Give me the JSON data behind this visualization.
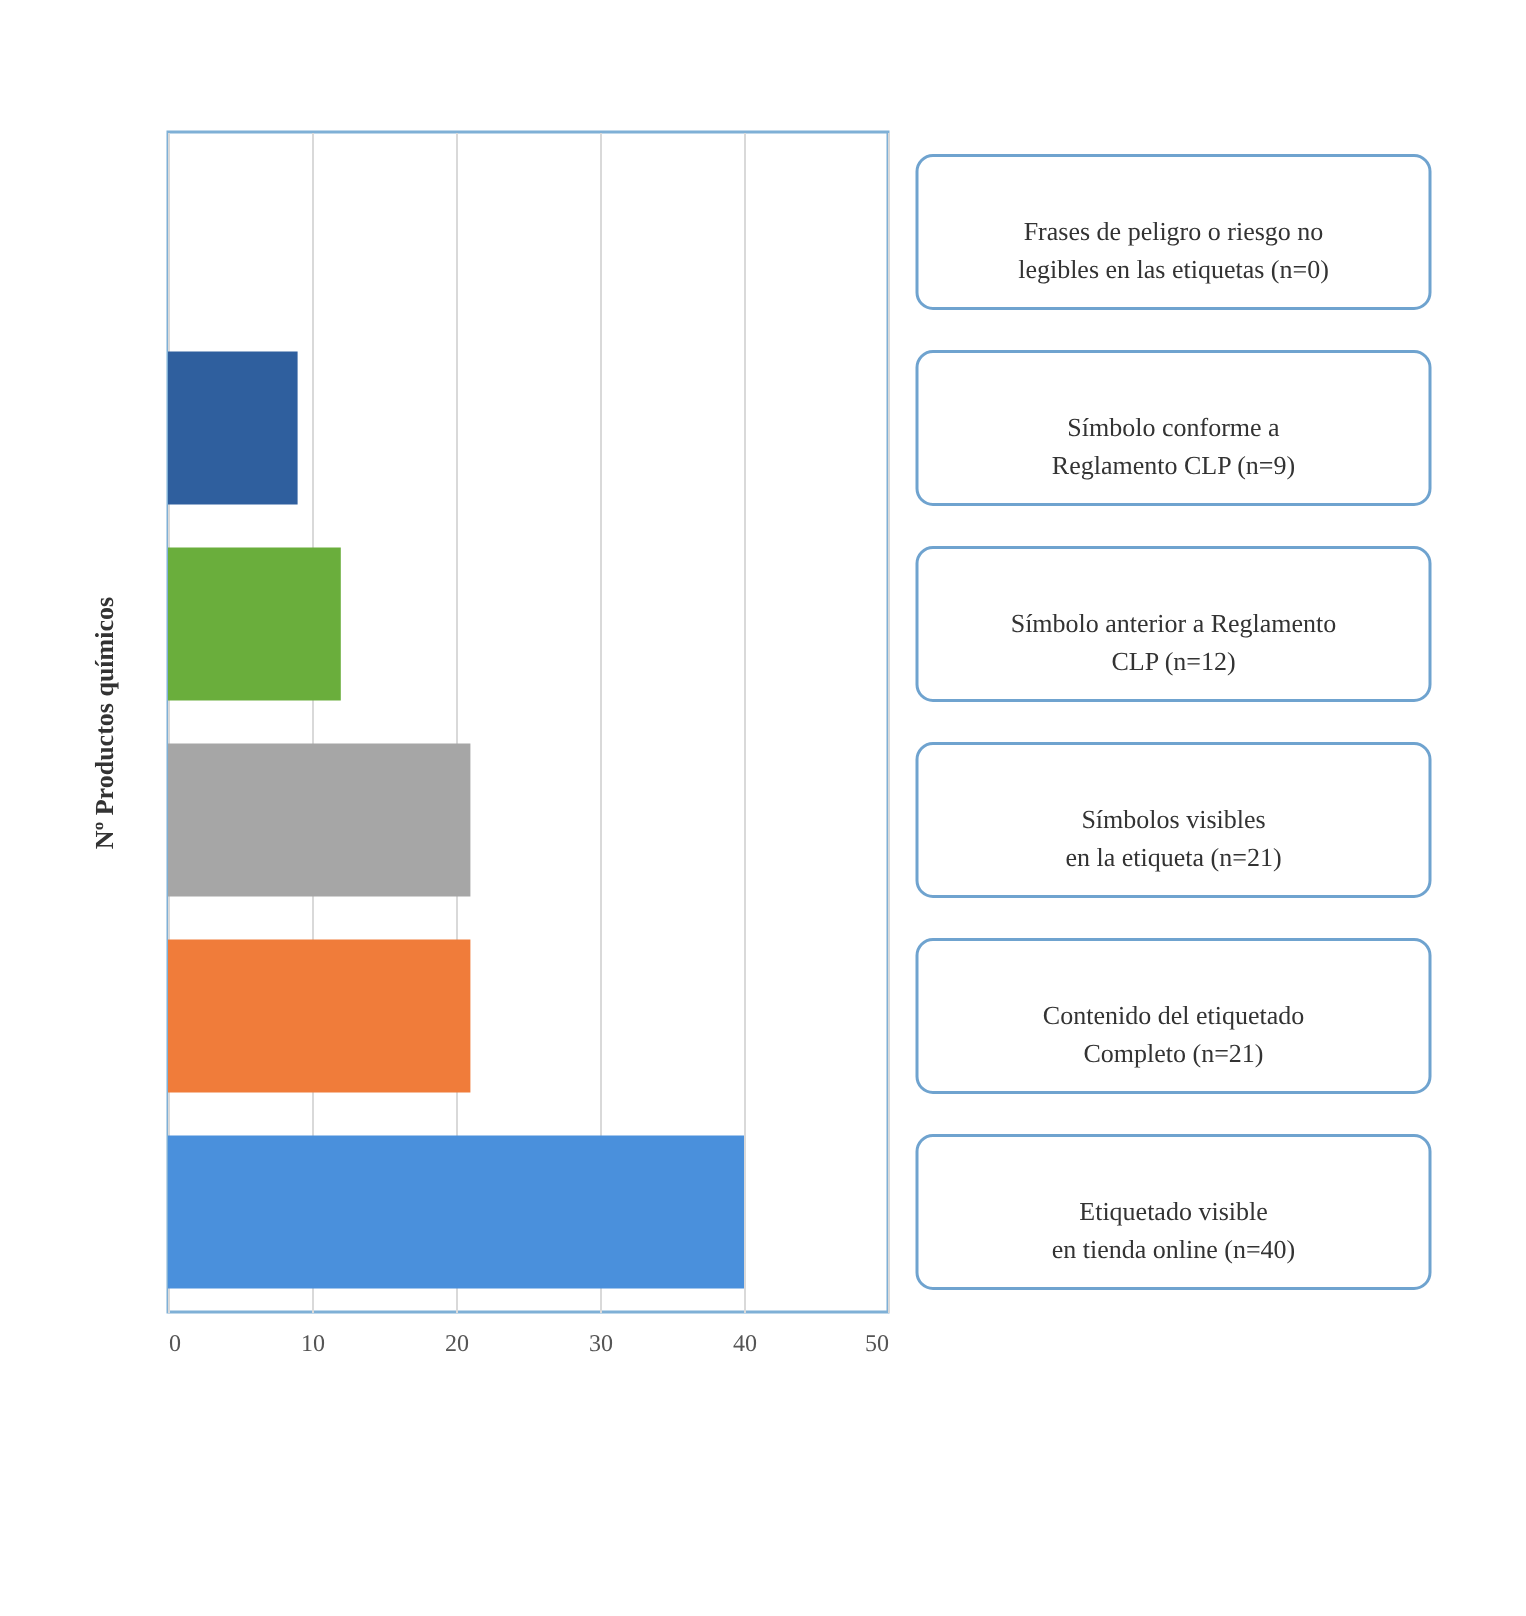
{
  "chart_data": {
    "type": "bar",
    "orientation": "horizontal",
    "ylabel": "Nº Productos químicos",
    "categories": [
      "Frases de peligro o riesgo no\nlegibles en las etiquetas (n=0)",
      "Símbolo conforme a\nReglamento CLP (n=9)",
      "Símbolo anterior a Reglamento\nCLP (n=12)",
      "Símbolos visibles\nen la etiqueta (n=21)",
      "Contenido del etiquetado\nCompleto (n=21)",
      "Etiquetado visible\nen tienda online (n=40)"
    ],
    "values": [
      0,
      9,
      12,
      21,
      21,
      40
    ],
    "colors": [
      "#4f81bd",
      "#2f5f9e",
      "#6aae3c",
      "#a6a6a6",
      "#f07c3a",
      "#4a90dc"
    ],
    "xlim": [
      0,
      50
    ],
    "xticks": [
      0,
      10,
      20,
      30,
      40,
      50
    ],
    "grid": "x"
  }
}
